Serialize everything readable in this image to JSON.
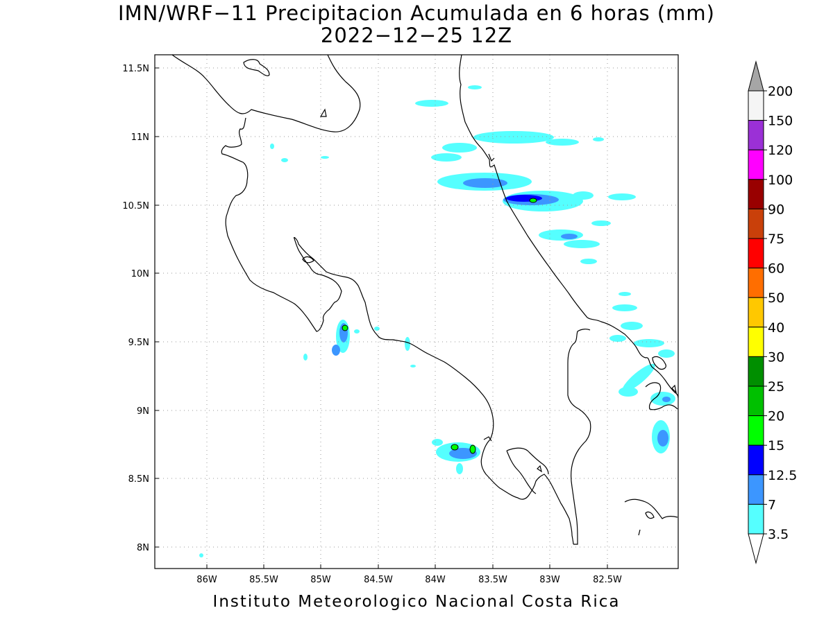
{
  "title": {
    "line1": "IMN/WRF−11 Precipitacion Acumulada en 6 horas (mm)",
    "line2": "2022−12−25 12Z"
  },
  "footer": "Instituto Meteorologico Nacional Costa Rica",
  "axes": {
    "longitude_labels": [
      "86W",
      "85.5W",
      "85W",
      "84.5W",
      "84W",
      "83.5W",
      "83W",
      "82.5W"
    ],
    "latitude_labels": [
      "11.5N",
      "11N",
      "10.5N",
      "10N",
      "9.5N",
      "9N",
      "8.5N",
      "8N"
    ]
  },
  "colorbar": {
    "labels": [
      "200",
      "150",
      "120",
      "100",
      "90",
      "75",
      "60",
      "50",
      "40",
      "30",
      "25",
      "20",
      "15",
      "12.5",
      "7",
      "3.5"
    ],
    "colors": [
      "#f5f5f5",
      "#9b30d6",
      "#ff00ff",
      "#990000",
      "#c9400a",
      "#ff0000",
      "#ff6e00",
      "#ffc800",
      "#ffff00",
      "#008f00",
      "#00c000",
      "#00ff00",
      "#0000ff",
      "#3c96ff",
      "#55ffff"
    ],
    "over_color": "#a6a6a6",
    "under_color": "#ffffff"
  }
}
